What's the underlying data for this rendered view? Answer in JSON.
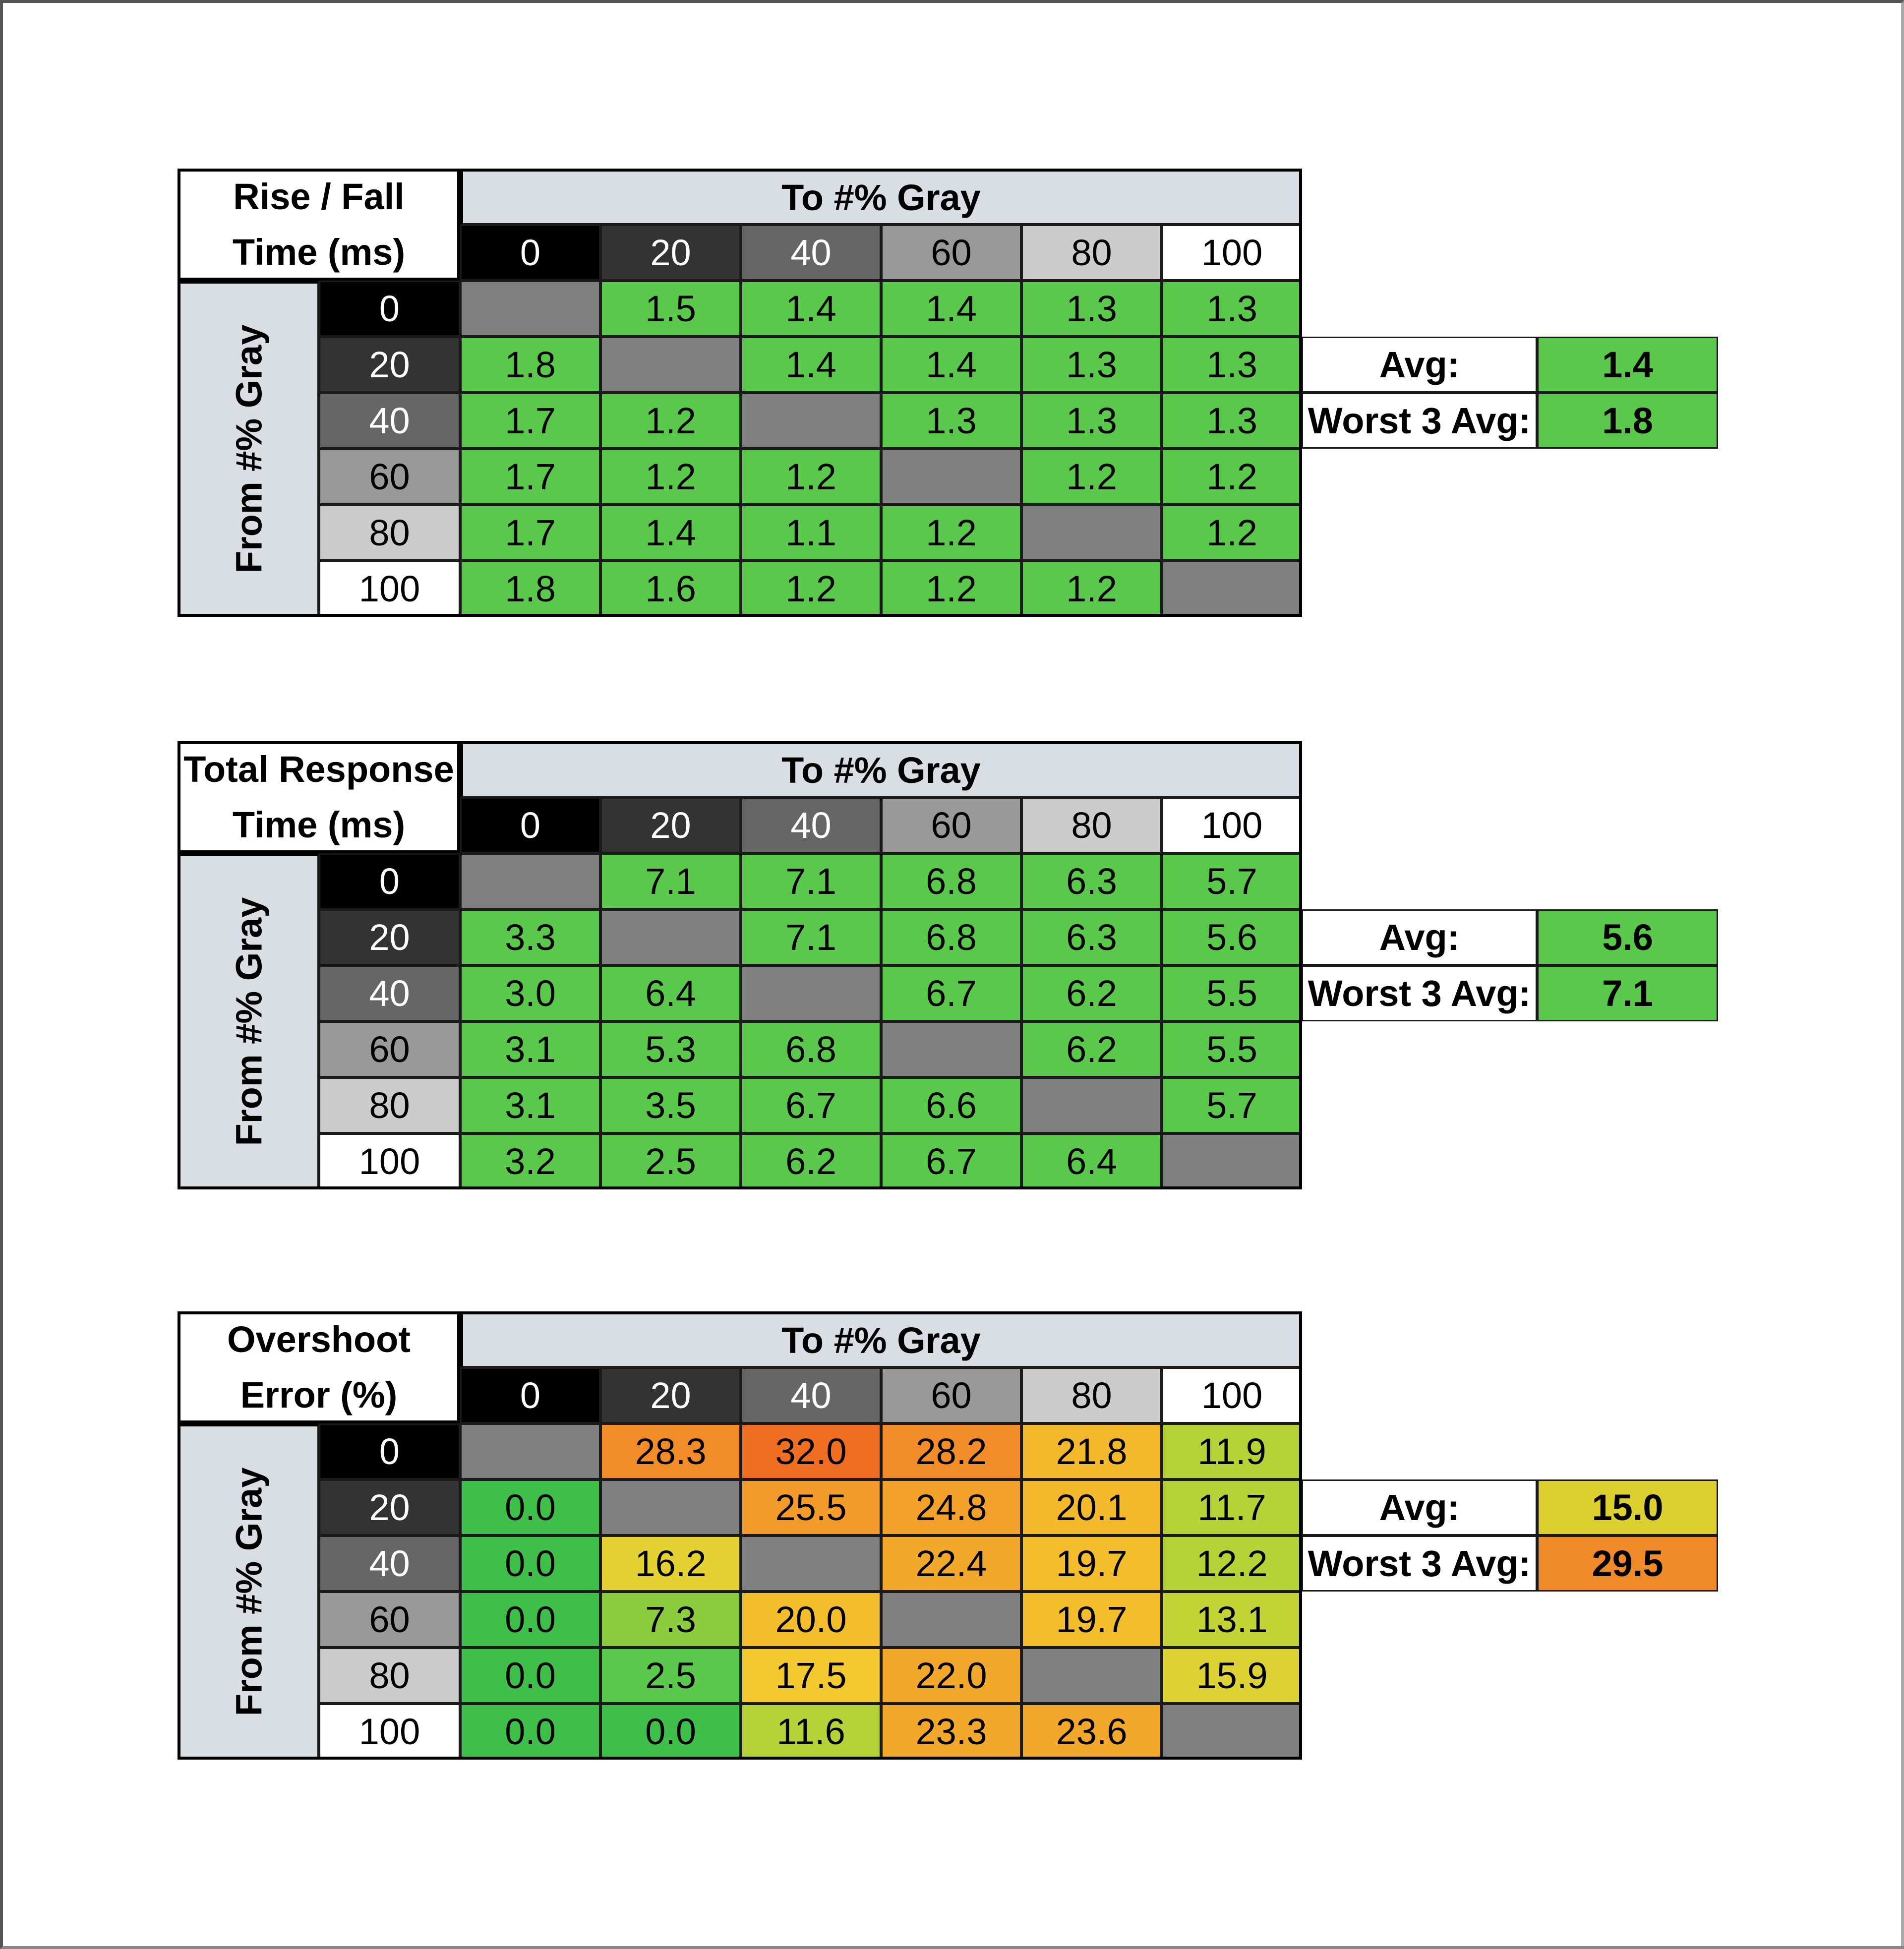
{
  "chart_data": [
    {
      "type": "table",
      "title_lines": [
        "Rise / Fall",
        "Time (ms)"
      ],
      "column_header": "To #% Gray",
      "row_header": "From #% Gray",
      "columns": [
        "0",
        "20",
        "40",
        "60",
        "80",
        "100"
      ],
      "rows": [
        "0",
        "20",
        "40",
        "60",
        "80",
        "100"
      ],
      "values": [
        [
          "",
          "1.5",
          "1.4",
          "1.4",
          "1.3",
          "1.3"
        ],
        [
          "1.8",
          "",
          "1.4",
          "1.4",
          "1.3",
          "1.3"
        ],
        [
          "1.7",
          "1.2",
          "",
          "1.3",
          "1.3",
          "1.3"
        ],
        [
          "1.7",
          "1.2",
          "1.2",
          "",
          "1.2",
          "1.2"
        ],
        [
          "1.7",
          "1.4",
          "1.1",
          "1.2",
          "",
          "1.2"
        ],
        [
          "1.8",
          "1.6",
          "1.2",
          "1.2",
          "1.2",
          ""
        ]
      ],
      "colors": [
        [
          "#808080",
          "#5ac84a",
          "#5ac84a",
          "#5ac84a",
          "#5ac84a",
          "#5ac84a"
        ],
        [
          "#5ac84a",
          "#808080",
          "#5ac84a",
          "#5ac84a",
          "#5ac84a",
          "#5ac84a"
        ],
        [
          "#5ac84a",
          "#5ac84a",
          "#808080",
          "#5ac84a",
          "#5ac84a",
          "#5ac84a"
        ],
        [
          "#5ac84a",
          "#5ac84a",
          "#5ac84a",
          "#808080",
          "#5ac84a",
          "#5ac84a"
        ],
        [
          "#5ac84a",
          "#5ac84a",
          "#5ac84a",
          "#5ac84a",
          "#808080",
          "#5ac84a"
        ],
        [
          "#5ac84a",
          "#5ac84a",
          "#5ac84a",
          "#5ac84a",
          "#5ac84a",
          "#808080"
        ]
      ],
      "summary": [
        {
          "label": "Avg:",
          "value": "1.4",
          "color": "#5ac84a"
        },
        {
          "label": "Worst 3 Avg:",
          "value": "1.8",
          "color": "#5ac84a"
        }
      ]
    },
    {
      "type": "table",
      "title_lines": [
        "Total Response",
        "Time (ms)"
      ],
      "column_header": "To #% Gray",
      "row_header": "From #% Gray",
      "columns": [
        "0",
        "20",
        "40",
        "60",
        "80",
        "100"
      ],
      "rows": [
        "0",
        "20",
        "40",
        "60",
        "80",
        "100"
      ],
      "values": [
        [
          "",
          "7.1",
          "7.1",
          "6.8",
          "6.3",
          "5.7"
        ],
        [
          "3.3",
          "",
          "7.1",
          "6.8",
          "6.3",
          "5.6"
        ],
        [
          "3.0",
          "6.4",
          "",
          "6.7",
          "6.2",
          "5.5"
        ],
        [
          "3.1",
          "5.3",
          "6.8",
          "",
          "6.2",
          "5.5"
        ],
        [
          "3.1",
          "3.5",
          "6.7",
          "6.6",
          "",
          "5.7"
        ],
        [
          "3.2",
          "2.5",
          "6.2",
          "6.7",
          "6.4",
          ""
        ]
      ],
      "colors": [
        [
          "#808080",
          "#5ac84a",
          "#5ac84a",
          "#5ac84a",
          "#5ac84a",
          "#5ac84a"
        ],
        [
          "#5ac84a",
          "#808080",
          "#5ac84a",
          "#5ac84a",
          "#5ac84a",
          "#5ac84a"
        ],
        [
          "#5ac84a",
          "#5ac84a",
          "#808080",
          "#5ac84a",
          "#5ac84a",
          "#5ac84a"
        ],
        [
          "#5ac84a",
          "#5ac84a",
          "#5ac84a",
          "#808080",
          "#5ac84a",
          "#5ac84a"
        ],
        [
          "#5ac84a",
          "#5ac84a",
          "#5ac84a",
          "#5ac84a",
          "#808080",
          "#5ac84a"
        ],
        [
          "#5ac84a",
          "#5ac84a",
          "#5ac84a",
          "#5ac84a",
          "#5ac84a",
          "#808080"
        ]
      ],
      "summary": [
        {
          "label": "Avg:",
          "value": "5.6",
          "color": "#5ac84a"
        },
        {
          "label": "Worst 3 Avg:",
          "value": "7.1",
          "color": "#5ac84a"
        }
      ]
    },
    {
      "type": "table",
      "title_lines": [
        "Overshoot",
        "Error (%)"
      ],
      "column_header": "To #% Gray",
      "row_header": "From #% Gray",
      "columns": [
        "0",
        "20",
        "40",
        "60",
        "80",
        "100"
      ],
      "rows": [
        "0",
        "20",
        "40",
        "60",
        "80",
        "100"
      ],
      "values": [
        [
          "",
          "28.3",
          "32.0",
          "28.2",
          "21.8",
          "11.9"
        ],
        [
          "0.0",
          "",
          "25.5",
          "24.8",
          "20.1",
          "11.7"
        ],
        [
          "0.0",
          "16.2",
          "",
          "22.4",
          "19.7",
          "12.2"
        ],
        [
          "0.0",
          "7.3",
          "20.0",
          "",
          "19.7",
          "13.1"
        ],
        [
          "0.0",
          "2.5",
          "17.5",
          "22.0",
          "",
          "15.9"
        ],
        [
          "0.0",
          "0.0",
          "11.6",
          "23.3",
          "23.6",
          ""
        ]
      ],
      "colors": [
        [
          "#808080",
          "#f28c28",
          "#ef6e22",
          "#f28c28",
          "#f4b82c",
          "#b5d337"
        ],
        [
          "#3dbf4a",
          "#808080",
          "#f29a2a",
          "#f2a12b",
          "#f4b82c",
          "#b5d337"
        ],
        [
          "#3dbf4a",
          "#e4d232",
          "#808080",
          "#f2a82b",
          "#f4bd2c",
          "#b5d337"
        ],
        [
          "#3dbf4a",
          "#8bcd3f",
          "#f4bd2c",
          "#808080",
          "#f4bd2c",
          "#c2d336"
        ],
        [
          "#3dbf4a",
          "#5ac84a",
          "#f4c82f",
          "#f2a82b",
          "#808080",
          "#ddd233"
        ],
        [
          "#3dbf4a",
          "#3dbf4a",
          "#b5d337",
          "#f2a82b",
          "#f2a82b",
          "#808080"
        ]
      ],
      "summary": [
        {
          "label": "Avg:",
          "value": "15.0",
          "color": "#dcd02f"
        },
        {
          "label": "Worst 3 Avg:",
          "value": "29.5",
          "color": "#f08a28"
        }
      ]
    }
  ],
  "gray_swatches": {
    "col_bg": [
      "#000000",
      "#333333",
      "#666666",
      "#999999",
      "#cccccc",
      "#ffffff"
    ],
    "col_fg": [
      "#ffffff",
      "#ffffff",
      "#ffffff",
      "#000000",
      "#000000",
      "#000000"
    ],
    "row_bg": [
      "#000000",
      "#333333",
      "#666666",
      "#999999",
      "#cccccc",
      "#ffffff"
    ],
    "row_fg": [
      "#ffffff",
      "#ffffff",
      "#ffffff",
      "#000000",
      "#000000",
      "#000000"
    ]
  }
}
